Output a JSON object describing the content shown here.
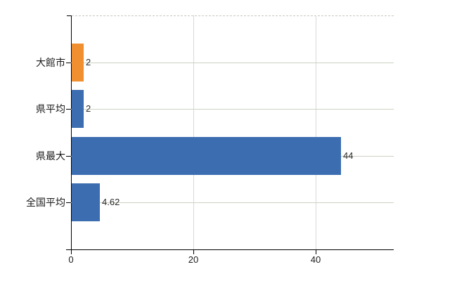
{
  "chart_data": {
    "type": "bar",
    "orientation": "horizontal",
    "title": "",
    "xlabel": "",
    "ylabel": "",
    "categories": [
      "大館市",
      "県平均",
      "県最大",
      "全国平均"
    ],
    "values": [
      2,
      2,
      44,
      4.62
    ],
    "value_labels": [
      "2",
      "2",
      "44",
      "4.62"
    ],
    "bar_colors": [
      "#ef8f2f",
      "#3c6db0",
      "#3c6db0",
      "#3c6db0"
    ],
    "x_ticks": [
      0,
      20,
      40
    ],
    "x_tick_labels": [
      "0",
      "20",
      "40"
    ],
    "xlim": [
      0,
      52.7
    ],
    "grid": true,
    "legend": false
  },
  "colors": {
    "bar_orange": "#ef8f2f",
    "bar_blue": "#3c6db0",
    "axis": "#000000",
    "gridline_horizontal": "#ccd3c4",
    "gridline_vertical": "#d8d8d8",
    "top_boundary_dashed": "#c6cabe",
    "text": "#1a1a1a",
    "background": "#ffffff"
  }
}
